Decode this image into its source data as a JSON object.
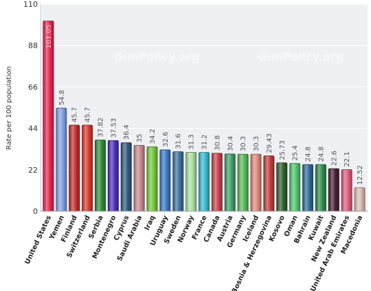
{
  "chart_data": {
    "type": "bar",
    "ylabel": "Rate per 100 population",
    "ylim": [
      0,
      110
    ],
    "yticks": [
      0,
      22,
      44,
      66,
      88,
      110
    ],
    "grid": true,
    "watermark": "GunPolicy.org",
    "categories": [
      "United States",
      "Yemen",
      "Finland",
      "Switzerland",
      "Serbia",
      "Montenegro",
      "Cyprus",
      "Saudi Arabia",
      "Iraq",
      "Uruguay",
      "Sweden",
      "Norway",
      "France",
      "Canada",
      "Austria",
      "Germany",
      "Iceland",
      "Bosnia & Herzegovina",
      "Kosovo",
      "Oman",
      "Bahrain",
      "Kuwait",
      "New Zealand",
      "United Arab Emirates",
      "Macedonia"
    ],
    "values": [
      101.05,
      54.8,
      45.7,
      45.7,
      37.82,
      37.53,
      36.4,
      35,
      34.2,
      32.6,
      31.6,
      31.3,
      31.2,
      30.8,
      30.4,
      30.3,
      30.3,
      29.43,
      25.73,
      25.4,
      24.8,
      24.8,
      22.6,
      22.1,
      12.52
    ],
    "value_labels": [
      "101.05",
      "54.8",
      "45.7",
      "45.7",
      "37.82",
      "37.53",
      "36.4",
      "35",
      "34.2",
      "32.6",
      "31.6",
      "31.3",
      "31.2",
      "30.8",
      "30.4",
      "30.3",
      "30.3",
      "29.43",
      "25.73",
      "25.4",
      "24.8",
      "24.8",
      "22.6",
      "22.1",
      "12.52"
    ],
    "colors": [
      "#e8254e",
      "#7f9ee2",
      "#c62c2c",
      "#d9382a",
      "#2e8b3c",
      "#4b2fb8",
      "#2f5a7f",
      "#c6888e",
      "#73c93a",
      "#3a78c3",
      "#3c6f9f",
      "#a8e0a0",
      "#35b9d0",
      "#c7404a",
      "#3f9e6a",
      "#59b857",
      "#e08878",
      "#c03d3d",
      "#2f5f2f",
      "#4fc66b",
      "#2f6a9a",
      "#2d8c4a",
      "#4a1f32",
      "#e05a7e",
      "#d8bcae"
    ]
  }
}
